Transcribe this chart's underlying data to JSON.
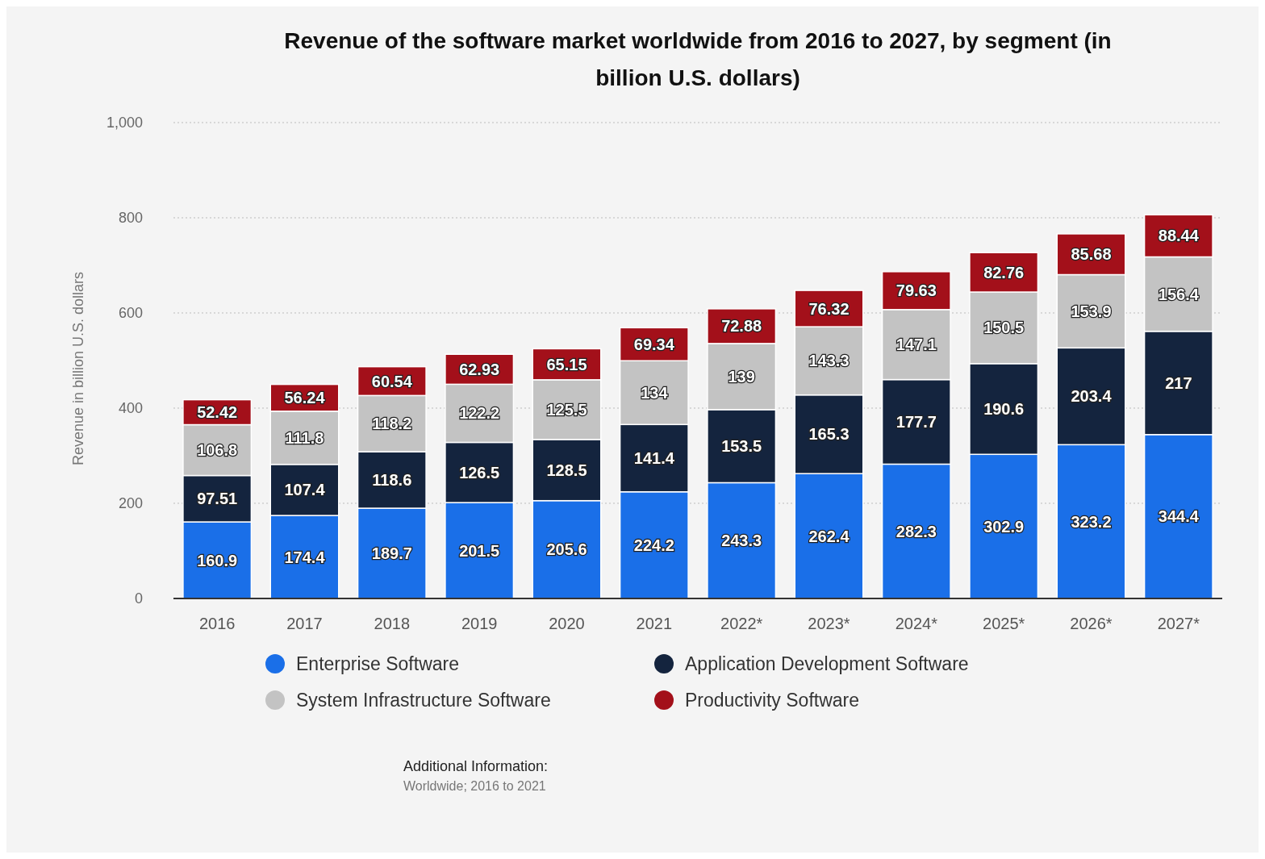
{
  "chart_data": {
    "type": "bar",
    "stacked": true,
    "title": "Revenue of the software market worldwide from 2016 to 2027, by segment (in billion U.S. dollars)",
    "ylabel": "Revenue in billion U.S. dollars",
    "categories": [
      "2016",
      "2017",
      "2018",
      "2019",
      "2020",
      "2021",
      "2022*",
      "2023*",
      "2024*",
      "2025*",
      "2026*",
      "2027*"
    ],
    "series": [
      {
        "name": "Enterprise Software",
        "color": "#1a6fe8",
        "values": [
          160.9,
          174.4,
          189.7,
          201.5,
          205.6,
          224.2,
          243.3,
          262.4,
          282.3,
          302.9,
          323.2,
          344.4
        ]
      },
      {
        "name": "Application Development Software",
        "color": "#14243e",
        "values": [
          97.51,
          107.4,
          118.6,
          126.5,
          128.5,
          141.4,
          153.5,
          165.3,
          177.7,
          190.6,
          203.4,
          217
        ]
      },
      {
        "name": "System Infrastructure Software",
        "color": "#c3c3c3",
        "values": [
          106.8,
          111.8,
          118.2,
          122.2,
          125.5,
          134,
          139,
          143.3,
          147.1,
          150.5,
          153.9,
          156.4
        ]
      },
      {
        "name": "Productivity Software",
        "color": "#a3101a",
        "values": [
          52.42,
          56.24,
          60.54,
          62.93,
          65.15,
          69.34,
          72.88,
          76.32,
          79.63,
          82.76,
          85.68,
          88.44
        ]
      }
    ],
    "ylim": [
      0,
      1000
    ],
    "yticks": [
      0,
      200,
      400,
      600,
      800,
      {
        "value": 1000,
        "label": "1,000"
      }
    ],
    "grid": "y",
    "legend": "bottom",
    "data_labels": true,
    "annotations": [
      "Additional Information:",
      "Worldwide; 2016 to 2021"
    ]
  }
}
